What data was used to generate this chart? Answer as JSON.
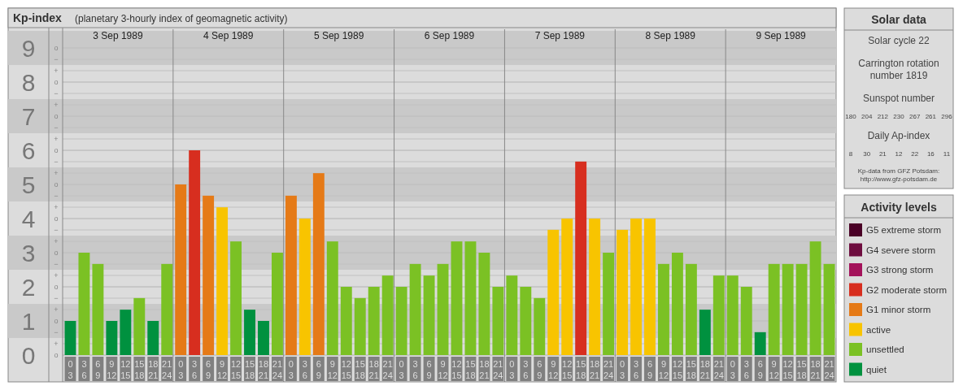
{
  "chart_data": [
    {
      "type": "bar",
      "title": "Kp-index",
      "subtitle": "(planetary 3-hourly index of geomagnetic activity)",
      "categories": [
        "0 3",
        "3 6",
        "6 9",
        "9 12",
        "12 15",
        "15 18",
        "18 21",
        "21 24",
        "0 3",
        "3 6",
        "6 9",
        "9 12",
        "12 15",
        "15 18",
        "18 21",
        "21 24",
        "0 3",
        "3 6",
        "6 9",
        "9 12",
        "12 15",
        "15 18",
        "18 21",
        "21 24",
        "0 3",
        "3 6",
        "6 9",
        "9 12",
        "12 15",
        "15 18",
        "18 21",
        "21 24",
        "0 3",
        "3 6",
        "6 9",
        "9 12",
        "12 15",
        "15 18",
        "18 21",
        "21 24",
        "0 3",
        "3 6",
        "6 9",
        "9 12",
        "12 15",
        "15 18",
        "18 21",
        "21 24",
        "0 3",
        "3 6",
        "6 9",
        "9 12",
        "12 15",
        "15 18",
        "18 21",
        "21 24"
      ],
      "series": [
        {
          "name": "G5 extreme storm",
          "color": "#4a0026",
          "values": [
            null,
            null,
            null,
            null,
            null,
            null,
            null,
            null,
            null,
            null,
            null,
            null,
            null,
            null,
            null,
            null,
            null,
            null,
            null,
            null,
            null,
            null,
            null,
            null,
            null,
            null,
            null,
            null,
            null,
            null,
            null,
            null,
            null,
            null,
            null,
            null,
            null,
            null,
            null,
            null,
            null,
            null,
            null,
            null,
            null,
            null,
            null,
            null,
            null,
            null,
            null,
            null,
            null,
            null,
            null,
            null
          ]
        },
        {
          "name": "G4 severe storm",
          "color": "#6e0d3f",
          "values": [
            null,
            null,
            null,
            null,
            null,
            null,
            null,
            null,
            null,
            null,
            null,
            null,
            null,
            null,
            null,
            null,
            null,
            null,
            null,
            null,
            null,
            null,
            null,
            null,
            null,
            null,
            null,
            null,
            null,
            null,
            null,
            null,
            null,
            null,
            null,
            null,
            null,
            null,
            null,
            null,
            null,
            null,
            null,
            null,
            null,
            null,
            null,
            null,
            null,
            null,
            null,
            null,
            null,
            null,
            null,
            null
          ]
        },
        {
          "name": "G3 strong storm",
          "color": "#a3125a",
          "values": [
            null,
            null,
            null,
            null,
            null,
            null,
            null,
            null,
            null,
            null,
            null,
            null,
            null,
            null,
            null,
            null,
            null,
            null,
            null,
            null,
            null,
            null,
            null,
            null,
            null,
            null,
            null,
            null,
            null,
            null,
            null,
            null,
            null,
            null,
            null,
            null,
            null,
            null,
            null,
            null,
            null,
            null,
            null,
            null,
            null,
            null,
            null,
            null,
            null,
            null,
            null,
            null,
            null,
            null,
            null,
            null
          ]
        },
        {
          "name": "G2 moderate storm",
          "color": "#d72e1f",
          "values": [
            null,
            null,
            null,
            null,
            null,
            null,
            null,
            null,
            null,
            6,
            null,
            null,
            null,
            null,
            null,
            null,
            null,
            null,
            null,
            null,
            null,
            null,
            null,
            null,
            null,
            null,
            null,
            null,
            null,
            null,
            null,
            null,
            null,
            null,
            null,
            null,
            null,
            5.67,
            null,
            null,
            null,
            null,
            null,
            null,
            null,
            null,
            null,
            null,
            null,
            null,
            null,
            null,
            null,
            null,
            null,
            null
          ]
        },
        {
          "name": "G1 minor storm",
          "color": "#e57a17",
          "values": [
            null,
            null,
            null,
            null,
            null,
            null,
            null,
            null,
            5,
            null,
            4.67,
            null,
            null,
            null,
            null,
            null,
            4.67,
            null,
            5.33,
            null,
            null,
            null,
            null,
            null,
            null,
            null,
            null,
            null,
            null,
            null,
            null,
            null,
            null,
            null,
            null,
            null,
            null,
            null,
            null,
            null,
            null,
            null,
            null,
            null,
            null,
            null,
            null,
            null,
            null,
            null,
            null,
            null,
            null,
            null,
            null,
            null
          ]
        },
        {
          "name": "active",
          "color": "#f8c400",
          "values": [
            null,
            null,
            null,
            null,
            null,
            null,
            null,
            null,
            null,
            null,
            null,
            4.33,
            null,
            null,
            null,
            null,
            null,
            4,
            null,
            null,
            null,
            null,
            null,
            null,
            null,
            null,
            null,
            null,
            null,
            null,
            null,
            null,
            null,
            null,
            null,
            3.67,
            4,
            null,
            4,
            null,
            3.67,
            4,
            4,
            null,
            null,
            null,
            null,
            null,
            null,
            null,
            null,
            null,
            null,
            null,
            null,
            null
          ]
        },
        {
          "name": "unsettled",
          "color": "#7bc124",
          "values": [
            null,
            3,
            2.67,
            null,
            null,
            1.67,
            null,
            2.67,
            null,
            null,
            null,
            null,
            3.33,
            null,
            null,
            3,
            null,
            null,
            null,
            3.33,
            2,
            1.67,
            2,
            2.33,
            2,
            2.67,
            2.33,
            2.67,
            3.33,
            3.33,
            3,
            2,
            2.33,
            2,
            1.67,
            null,
            null,
            null,
            null,
            3,
            null,
            null,
            null,
            2.67,
            3,
            2.67,
            null,
            2.33,
            2.33,
            2,
            null,
            2.67,
            2.67,
            2.67,
            3.33,
            2.67
          ]
        },
        {
          "name": "quiet",
          "color": "#00913f",
          "values": [
            1,
            null,
            null,
            1,
            1.33,
            null,
            1,
            null,
            null,
            null,
            null,
            null,
            null,
            1.33,
            1,
            null,
            null,
            null,
            null,
            null,
            null,
            null,
            null,
            null,
            null,
            null,
            null,
            null,
            null,
            null,
            null,
            null,
            null,
            null,
            null,
            null,
            null,
            null,
            null,
            null,
            null,
            null,
            null,
            null,
            null,
            null,
            1.33,
            null,
            null,
            null,
            0.67,
            null,
            null,
            null,
            null,
            null
          ]
        }
      ],
      "ylim": [
        -0.8,
        9.5
      ],
      "yticks": [
        0,
        1,
        2,
        3,
        4,
        5,
        6,
        7,
        8,
        9
      ],
      "bands": [
        {
          "axis": "y",
          "from": 0.5,
          "to": 1.5,
          "color": "#c9c9c9"
        },
        {
          "axis": "y",
          "from": 2.5,
          "to": 3.5,
          "color": "#c9c9c9"
        },
        {
          "axis": "y",
          "from": 4.5,
          "to": 5.5,
          "color": "#c9c9c9"
        },
        {
          "axis": "y",
          "from": 6.5,
          "to": 7.5,
          "color": "#c9c9c9"
        },
        {
          "axis": "y",
          "from": 8.5,
          "to": 9.5,
          "color": "#c9c9c9"
        }
      ],
      "grid": true,
      "legend": "right",
      "legend_title": "Activity levels",
      "annotations": [
        "3 Sep 1989",
        "4 Sep 1989",
        "5 Sep 1989",
        "6 Sep 1989",
        "7 Sep 1989",
        "8 Sep 1989",
        "9 Sep 1989",
        "o",
        "+",
        "−",
        "o",
        "+",
        "−",
        "o",
        "+",
        "−",
        "o",
        "+",
        "−",
        "o",
        "+",
        "−",
        "o",
        "+",
        "−",
        "o",
        "+",
        "−",
        "o",
        "+",
        "−",
        "o",
        "+",
        "−",
        "o"
      ]
    },
    {
      "type": "other",
      "title": "Solar data",
      "annotations": [
        "Solar cycle 22",
        "Carrington rotation number 1819",
        "Sunspot number",
        "180 204 212 230 267 261 296",
        "Daily Ap-index",
        "8 30 21 12 22 16 11",
        "Kp-data from GFZ Potsdam: http://www.gfz-potsdam.de"
      ]
    }
  ]
}
